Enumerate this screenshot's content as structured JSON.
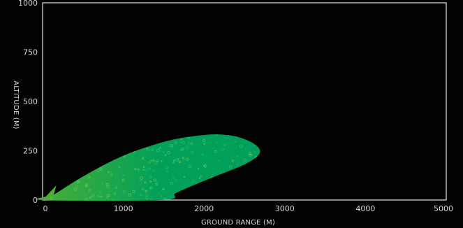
{
  "chart_data": {
    "type": "area",
    "title": "",
    "xlabel": "GROUND RANGE (M)",
    "ylabel": "ALTITUDE (M)",
    "xlim": [
      0,
      5000
    ],
    "ylim": [
      0,
      1000
    ],
    "xticks": [
      "0",
      "1000",
      "2000",
      "3000",
      "4000",
      "5000"
    ],
    "yticks": [
      "1000",
      "750",
      "500",
      "250",
      "0"
    ],
    "grid": false,
    "legend": "none",
    "series": [
      {
        "points": [
          [
            0,
            0
          ],
          [
            150,
            30
          ],
          [
            400,
            95
          ],
          [
            700,
            165
          ],
          [
            1000,
            225
          ],
          [
            1300,
            270
          ],
          [
            1600,
            305
          ],
          [
            1900,
            325
          ],
          [
            2150,
            333
          ],
          [
            2400,
            322
          ],
          [
            2600,
            290
          ],
          [
            2690,
            255
          ],
          [
            2660,
            222
          ],
          [
            2500,
            180
          ],
          [
            2200,
            130
          ],
          [
            1900,
            80
          ],
          [
            1650,
            35
          ],
          [
            1480,
            0
          ]
        ],
        "spike": [
          [
            0,
            0
          ],
          [
            170,
            75
          ],
          [
            120,
            0
          ]
        ]
      }
    ],
    "colors": {
      "background": "#020203",
      "axis": "#e6e6e6",
      "text": "#d8d8d8",
      "fill_start": "#4caf35",
      "fill_end": "#00a05a",
      "dots": "#9be36d"
    }
  }
}
